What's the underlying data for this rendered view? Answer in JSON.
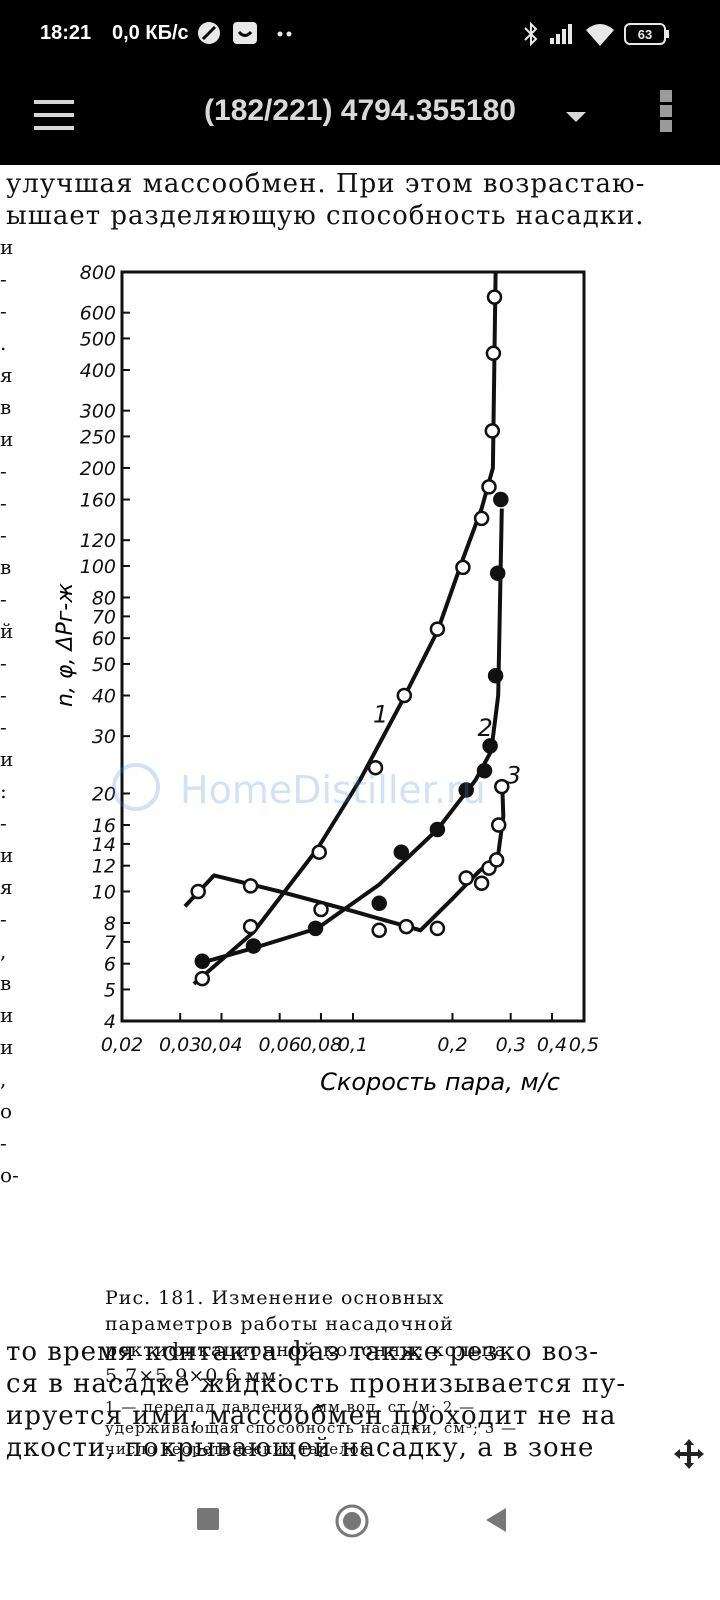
{
  "status_bar": {
    "time": "18:21",
    "network": "0,0 КБ/с",
    "battery": "63",
    "icons": [
      "compass-icon",
      "smile-icon",
      "more-dots-icon",
      "bluetooth-icon",
      "signal-icon",
      "wifi-icon",
      "battery-icon"
    ]
  },
  "app_bar": {
    "title": "(182/221) 4794.355180",
    "icons": [
      "menu-icon",
      "dropdown-arrow-icon",
      "overflow-menu-icon"
    ]
  },
  "document": {
    "top_lines": [
      "улучшая массообмен. При этом возрастаю-",
      "ышает  разделяющую  способность  насадки."
    ],
    "margin_chars": [
      "и",
      "-",
      "-",
      ".",
      "я",
      "в",
      "и",
      "-",
      "-",
      "-",
      "в",
      "-",
      "й",
      "-",
      "-",
      "-",
      "и",
      ":",
      "-",
      "и",
      "я",
      "-",
      ",",
      "в",
      "и",
      "и",
      ",",
      "о",
      "-",
      "о-"
    ],
    "bottom_lines": [
      "то время  контакта фаз  также резко  воз-",
      "ся  в насадке  жидкость пронизывается  пу-",
      "ируется ими, массообмен  проходит  не на",
      "дкости,  покрывающей  насадку,  а в зоне"
    ],
    "watermark": "HomeDistiller.ru",
    "figure_caption": "Рис. 181. Изменение основных параметров работы насадочной ректификационной колонны; кольца 5,7×5,9×0,6 мм:",
    "figure_note": "1 — перепад давления, мм вод. ст./м; 2 — удерживающая способность насадки, см³; 3 — число теоретических тарелок"
  },
  "chart_data": {
    "type": "line",
    "xlabel": "Скорость пара, м/с",
    "ylabel": "n, φ, ΔPг-ж",
    "x_scale": "log",
    "y_scale": "log",
    "xlim": [
      0.02,
      0.5
    ],
    "ylim": [
      4,
      800
    ],
    "x_ticks": [
      0.02,
      0.03,
      0.04,
      0.06,
      0.08,
      0.1,
      0.2,
      0.3,
      0.4,
      0.5
    ],
    "x_tick_labels": [
      "0,02",
      "0,03",
      "0,04",
      "0,06",
      "0,08",
      "0,1",
      "0,2",
      "0,3",
      "0,4",
      "0,5"
    ],
    "y_ticks": [
      4,
      5,
      6,
      7,
      8,
      10,
      12,
      14,
      16,
      20,
      30,
      40,
      50,
      60,
      70,
      80,
      100,
      120,
      160,
      200,
      250,
      300,
      400,
      500,
      600,
      800
    ],
    "y_tick_labels": [
      "4",
      "5",
      "6",
      "7",
      "8",
      "10",
      "12",
      "14",
      "16",
      "20",
      "30",
      "40",
      "50",
      "60",
      "70",
      "80",
      "100",
      "120",
      "160",
      "200",
      "250",
      "300",
      "400",
      "500",
      "600",
      "800"
    ],
    "series": [
      {
        "name": "1",
        "marker": "open-circle",
        "curve": [
          [
            0.033,
            5.2
          ],
          [
            0.05,
            7.5
          ],
          [
            0.078,
            13.5
          ],
          [
            0.105,
            22
          ],
          [
            0.14,
            38
          ],
          [
            0.18,
            63
          ],
          [
            0.215,
            105
          ],
          [
            0.245,
            150
          ],
          [
            0.265,
            200
          ],
          [
            0.27,
            800
          ]
        ],
        "points": [
          [
            0.035,
            5.4
          ],
          [
            0.049,
            7.8
          ],
          [
            0.079,
            13.2
          ],
          [
            0.117,
            24
          ],
          [
            0.143,
            40
          ],
          [
            0.18,
            64
          ],
          [
            0.215,
            99
          ],
          [
            0.245,
            140
          ],
          [
            0.258,
            175
          ],
          [
            0.264,
            260
          ],
          [
            0.266,
            450
          ],
          [
            0.268,
            670
          ]
        ]
      },
      {
        "name": "2",
        "marker": "filled-circle",
        "curve": [
          [
            0.034,
            6.0
          ],
          [
            0.05,
            6.7
          ],
          [
            0.078,
            7.7
          ],
          [
            0.12,
            10.5
          ],
          [
            0.18,
            15.5
          ],
          [
            0.235,
            22
          ],
          [
            0.262,
            27
          ],
          [
            0.275,
            40
          ],
          [
            0.282,
            150
          ]
        ],
        "points": [
          [
            0.035,
            6.1
          ],
          [
            0.05,
            6.8
          ],
          [
            0.077,
            7.7
          ],
          [
            0.12,
            9.2
          ],
          [
            0.14,
            13.2
          ],
          [
            0.18,
            15.5
          ],
          [
            0.22,
            20.5
          ],
          [
            0.25,
            23.5
          ],
          [
            0.26,
            28
          ],
          [
            0.27,
            46
          ],
          [
            0.274,
            95
          ],
          [
            0.28,
            160
          ]
        ]
      },
      {
        "name": "3",
        "marker": "open-circle",
        "curve": [
          [
            0.031,
            9.0
          ],
          [
            0.038,
            11.2
          ],
          [
            0.06,
            10.0
          ],
          [
            0.1,
            8.7
          ],
          [
            0.16,
            7.6
          ],
          [
            0.2,
            9.5
          ],
          [
            0.24,
            11.5
          ],
          [
            0.275,
            13.0
          ],
          [
            0.285,
            17
          ],
          [
            0.283,
            21
          ]
        ],
        "points": [
          [
            0.034,
            10.0
          ],
          [
            0.049,
            10.4
          ],
          [
            0.08,
            8.8
          ],
          [
            0.12,
            7.6
          ],
          [
            0.145,
            7.8
          ],
          [
            0.18,
            7.7
          ],
          [
            0.22,
            11
          ],
          [
            0.245,
            10.6
          ],
          [
            0.258,
            11.8
          ],
          [
            0.272,
            12.5
          ],
          [
            0.276,
            16
          ],
          [
            0.282,
            21
          ]
        ]
      }
    ]
  },
  "nav_bar": {
    "icons": [
      "recents-square-icon",
      "home-circle-icon",
      "back-triangle-icon",
      "move-arrows-icon"
    ]
  }
}
